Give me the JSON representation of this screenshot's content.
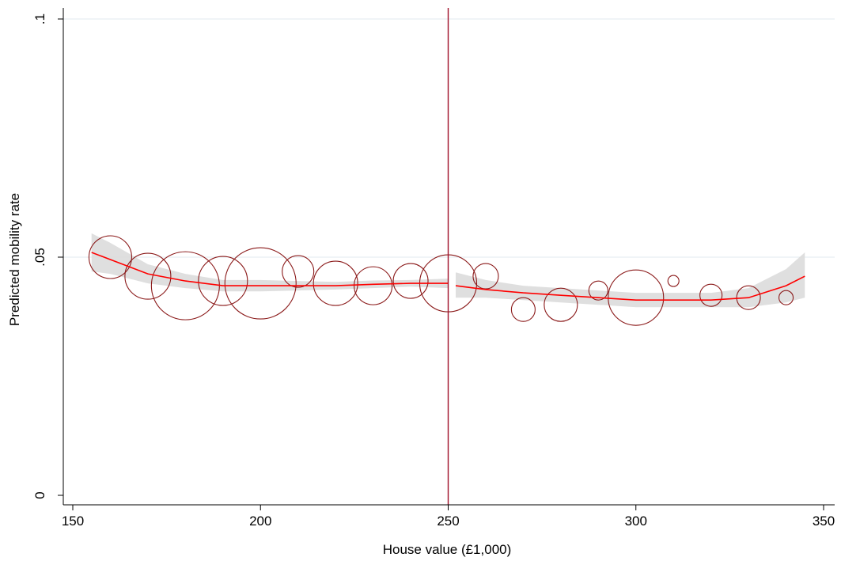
{
  "chart_data": {
    "type": "scatter",
    "title": "",
    "xlabel": "House value (£1,000)",
    "ylabel": "Predicted mobility rate",
    "xlim": [
      150,
      350
    ],
    "ylim": [
      0,
      0.1
    ],
    "xticks": [
      {
        "value": 150,
        "label": "150"
      },
      {
        "value": 200,
        "label": "200"
      },
      {
        "value": 250,
        "label": "250"
      },
      {
        "value": 300,
        "label": "300"
      },
      {
        "value": 350,
        "label": "350"
      }
    ],
    "yticks": [
      {
        "value": 0,
        "label": "0"
      },
      {
        "value": 0.05,
        "label": ".05"
      },
      {
        "value": 0.1,
        "label": ".1"
      }
    ],
    "grid": "horizontal",
    "cutoff_x": 250,
    "points": [
      {
        "x": 160,
        "y": 0.05,
        "size": 27
      },
      {
        "x": 170,
        "y": 0.046,
        "size": 29
      },
      {
        "x": 180,
        "y": 0.044,
        "size": 43
      },
      {
        "x": 190,
        "y": 0.045,
        "size": 31
      },
      {
        "x": 200,
        "y": 0.0445,
        "size": 45
      },
      {
        "x": 210,
        "y": 0.047,
        "size": 20
      },
      {
        "x": 220,
        "y": 0.0445,
        "size": 28
      },
      {
        "x": 230,
        "y": 0.044,
        "size": 24
      },
      {
        "x": 240,
        "y": 0.045,
        "size": 22
      },
      {
        "x": 250,
        "y": 0.0445,
        "size": 36
      },
      {
        "x": 260,
        "y": 0.046,
        "size": 16
      },
      {
        "x": 270,
        "y": 0.039,
        "size": 15
      },
      {
        "x": 280,
        "y": 0.04,
        "size": 21
      },
      {
        "x": 290,
        "y": 0.043,
        "size": 12
      },
      {
        "x": 300,
        "y": 0.0415,
        "size": 35
      },
      {
        "x": 310,
        "y": 0.045,
        "size": 7
      },
      {
        "x": 320,
        "y": 0.042,
        "size": 14
      },
      {
        "x": 330,
        "y": 0.0415,
        "size": 15
      },
      {
        "x": 340,
        "y": 0.0415,
        "size": 9
      }
    ],
    "fit": {
      "x": [
        155,
        160,
        170,
        180,
        190,
        200,
        210,
        220,
        230,
        240,
        250,
        252,
        260,
        270,
        280,
        290,
        300,
        310,
        320,
        330,
        340,
        345
      ],
      "y": [
        0.051,
        0.0495,
        0.0465,
        0.045,
        0.044,
        0.044,
        0.044,
        0.044,
        0.0443,
        0.0445,
        0.0445,
        0.044,
        0.0432,
        0.0425,
        0.042,
        0.0415,
        0.041,
        0.041,
        0.041,
        0.0415,
        0.044,
        0.046
      ],
      "lower": [
        0.047,
        0.0465,
        0.0445,
        0.0435,
        0.0428,
        0.0428,
        0.043,
        0.0432,
        0.0435,
        0.0438,
        0.0435,
        0.0415,
        0.0415,
        0.041,
        0.0405,
        0.04,
        0.0395,
        0.0395,
        0.0395,
        0.0395,
        0.0405,
        0.0415
      ],
      "upper": [
        0.055,
        0.053,
        0.0485,
        0.0465,
        0.0452,
        0.0452,
        0.045,
        0.0448,
        0.0451,
        0.0452,
        0.0455,
        0.0468,
        0.0452,
        0.044,
        0.0435,
        0.043,
        0.0425,
        0.0425,
        0.0425,
        0.0435,
        0.0475,
        0.051
      ]
    },
    "colors": {
      "markers": "#8b1a1a",
      "fit_line": "#ff0000",
      "ci_band": "#dcdcdc",
      "cutoff_line": "#a0102a",
      "grid": "#e6eef2",
      "axis": "#000000"
    }
  }
}
